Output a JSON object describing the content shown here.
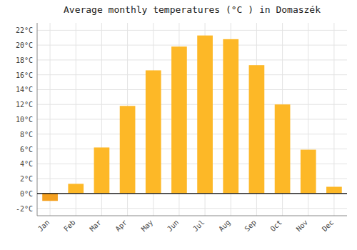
{
  "chart_data": {
    "type": "bar",
    "title": "Average monthly temperatures (°C ) in Domaszék",
    "categories": [
      "Jan",
      "Feb",
      "Mar",
      "Apr",
      "May",
      "Jun",
      "Jul",
      "Aug",
      "Sep",
      "Oct",
      "Nov",
      "Dec"
    ],
    "values": [
      -1.0,
      1.3,
      6.2,
      11.8,
      16.6,
      19.8,
      21.3,
      20.8,
      17.3,
      12.0,
      5.9,
      0.9
    ],
    "colors": [
      "#F4A020",
      "#FDB827",
      "#FDB827",
      "#FDB827",
      "#FDB827",
      "#FDB827",
      "#FDB827",
      "#FDB827",
      "#FDB827",
      "#FDB827",
      "#FDB827",
      "#FDB827"
    ],
    "ylim": [
      -3,
      23
    ],
    "yticks": [
      {
        "value": -2,
        "label": "-2°C"
      },
      {
        "value": 0,
        "label": "0°C"
      },
      {
        "value": 2,
        "label": "2°C"
      },
      {
        "value": 4,
        "label": "4°C"
      },
      {
        "value": 6,
        "label": "6°C"
      },
      {
        "value": 8,
        "label": "8°C"
      },
      {
        "value": 10,
        "label": "10°C"
      },
      {
        "value": 12,
        "label": "12°C"
      },
      {
        "value": 14,
        "label": "14°C"
      },
      {
        "value": 16,
        "label": "16°C"
      },
      {
        "value": 18,
        "label": "18°C"
      },
      {
        "value": 20,
        "label": "20°C"
      },
      {
        "value": 22,
        "label": "22°C"
      }
    ],
    "grid": true
  }
}
